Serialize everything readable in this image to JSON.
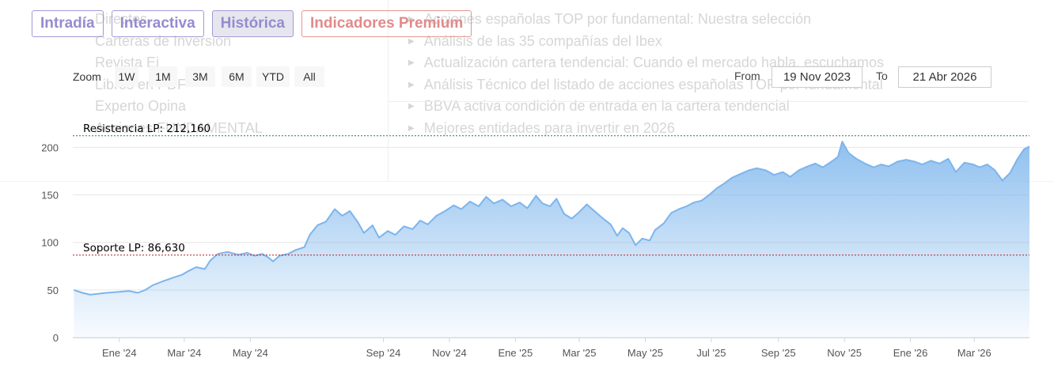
{
  "background_menu": {
    "left_items": [
      "Directos",
      "Carteras de Inversión",
      "Revista Ei",
      "Libros en PDF",
      "Experto Opina",
      "Acciones FUNDAMENTAL"
    ],
    "right_items": [
      "Acciones españolas TOP por fundamental: Nuestra selección",
      "Análisis de las 35 compañías del Ibex",
      "Actualización cartera tendencial: Cuando el mercado habla, escuchamos",
      "Análisis Técnico del listado de acciones españolas TOP por fundamental",
      "BBVA activa condición de entrada en la cartera tendencial",
      "Mejores entidades para invertir en 2026"
    ]
  },
  "tabs": [
    {
      "label": "Intradía",
      "active": false
    },
    {
      "label": "Interactiva",
      "active": false
    },
    {
      "label": "Histórica",
      "active": true
    },
    {
      "label": "Indicadores Premium",
      "active": false
    }
  ],
  "range_selector": {
    "zoom_label": "Zoom",
    "buttons": [
      "1W",
      "1M",
      "3M",
      "6M",
      "YTD",
      "All"
    ],
    "from_label": "From",
    "from_value": "19 Nov 2023",
    "to_label": "To",
    "to_value": "21 Abr 2026"
  },
  "colors": {
    "tab_border": "#a39ad6",
    "tab_text": "#958bd0",
    "premium": "#e28a8a",
    "series_line": "#7cb5ec",
    "resistance": "#2e7d32",
    "support": "#b71c1c"
  },
  "chart_data": {
    "type": "area",
    "ylim": [
      0,
      212
    ],
    "y_ticks": [
      0,
      50,
      100,
      150,
      200
    ],
    "x_range": [
      "2023-11-19",
      "2026-04-21"
    ],
    "x_ticks": [
      {
        "date": "2024-01-01",
        "label": "Ene '24"
      },
      {
        "date": "2024-03-01",
        "label": "Mar '24"
      },
      {
        "date": "2024-05-01",
        "label": "May '24"
      },
      {
        "date": "2024-09-01",
        "label": "Sep '24"
      },
      {
        "date": "2024-11-01",
        "label": "Nov '24"
      },
      {
        "date": "2025-01-01",
        "label": "Ene '25"
      },
      {
        "date": "2025-03-01",
        "label": "Mar '25"
      },
      {
        "date": "2025-05-01",
        "label": "May '25"
      },
      {
        "date": "2025-07-01",
        "label": "Jul '25"
      },
      {
        "date": "2025-09-01",
        "label": "Sep '25"
      },
      {
        "date": "2025-11-01",
        "label": "Nov '25"
      },
      {
        "date": "2026-01-01",
        "label": "Ene '26"
      },
      {
        "date": "2026-03-01",
        "label": "Mar '26"
      }
    ],
    "levels": [
      {
        "label": "Resistencia LP: 212,160",
        "value": 212.16,
        "color": "#2e7d32"
      },
      {
        "label": "Soporte LP: 86,630",
        "value": 86.63,
        "color": "#b71c1c"
      }
    ],
    "series": [
      {
        "points": [
          [
            "2023-11-20",
            50
          ],
          [
            "2023-11-28",
            47
          ],
          [
            "2023-12-05",
            45
          ],
          [
            "2023-12-12",
            46
          ],
          [
            "2023-12-20",
            47
          ],
          [
            "2024-01-01",
            48
          ],
          [
            "2024-01-10",
            49
          ],
          [
            "2024-01-18",
            47
          ],
          [
            "2024-01-25",
            50
          ],
          [
            "2024-02-01",
            55
          ],
          [
            "2024-02-10",
            59
          ],
          [
            "2024-02-20",
            63
          ],
          [
            "2024-02-28",
            66
          ],
          [
            "2024-03-05",
            70
          ],
          [
            "2024-03-12",
            74
          ],
          [
            "2024-03-20",
            72
          ],
          [
            "2024-03-25",
            81
          ],
          [
            "2024-04-01",
            88
          ],
          [
            "2024-04-10",
            90
          ],
          [
            "2024-04-20",
            87
          ],
          [
            "2024-04-28",
            89
          ],
          [
            "2024-05-05",
            86
          ],
          [
            "2024-05-12",
            88
          ],
          [
            "2024-05-18",
            84
          ],
          [
            "2024-05-22",
            80
          ],
          [
            "2024-05-28",
            86
          ],
          [
            "2024-06-05",
            88
          ],
          [
            "2024-06-12",
            92
          ],
          [
            "2024-06-20",
            95
          ],
          [
            "2024-06-25",
            108
          ],
          [
            "2024-07-02",
            118
          ],
          [
            "2024-07-10",
            122
          ],
          [
            "2024-07-18",
            135
          ],
          [
            "2024-07-25",
            128
          ],
          [
            "2024-08-01",
            133
          ],
          [
            "2024-08-08",
            122
          ],
          [
            "2024-08-14",
            110
          ],
          [
            "2024-08-22",
            118
          ],
          [
            "2024-08-28",
            105
          ],
          [
            "2024-09-05",
            112
          ],
          [
            "2024-09-12",
            108
          ],
          [
            "2024-09-20",
            117
          ],
          [
            "2024-09-28",
            114
          ],
          [
            "2024-10-05",
            123
          ],
          [
            "2024-10-12",
            119
          ],
          [
            "2024-10-20",
            128
          ],
          [
            "2024-10-28",
            133
          ],
          [
            "2024-11-05",
            139
          ],
          [
            "2024-11-12",
            135
          ],
          [
            "2024-11-20",
            143
          ],
          [
            "2024-11-28",
            138
          ],
          [
            "2024-12-05",
            148
          ],
          [
            "2024-12-12",
            141
          ],
          [
            "2024-12-20",
            145
          ],
          [
            "2024-12-28",
            138
          ],
          [
            "2025-01-05",
            142
          ],
          [
            "2025-01-12",
            136
          ],
          [
            "2025-01-20",
            149
          ],
          [
            "2025-01-26",
            141
          ],
          [
            "2025-02-02",
            138
          ],
          [
            "2025-02-08",
            146
          ],
          [
            "2025-02-15",
            130
          ],
          [
            "2025-02-22",
            125
          ],
          [
            "2025-03-01",
            132
          ],
          [
            "2025-03-08",
            140
          ],
          [
            "2025-03-15",
            133
          ],
          [
            "2025-03-22",
            126
          ],
          [
            "2025-03-30",
            119
          ],
          [
            "2025-04-05",
            107
          ],
          [
            "2025-04-10",
            115
          ],
          [
            "2025-04-16",
            110
          ],
          [
            "2025-04-22",
            97
          ],
          [
            "2025-04-28",
            104
          ],
          [
            "2025-05-05",
            102
          ],
          [
            "2025-05-10",
            113
          ],
          [
            "2025-05-18",
            120
          ],
          [
            "2025-05-25",
            131
          ],
          [
            "2025-06-01",
            135
          ],
          [
            "2025-06-08",
            138
          ],
          [
            "2025-06-15",
            142
          ],
          [
            "2025-06-22",
            144
          ],
          [
            "2025-06-29",
            150
          ],
          [
            "2025-07-06",
            157
          ],
          [
            "2025-07-13",
            162
          ],
          [
            "2025-07-20",
            168
          ],
          [
            "2025-07-28",
            172
          ],
          [
            "2025-08-05",
            176
          ],
          [
            "2025-08-12",
            178
          ],
          [
            "2025-08-20",
            176
          ],
          [
            "2025-08-28",
            171
          ],
          [
            "2025-09-05",
            174
          ],
          [
            "2025-09-12",
            169
          ],
          [
            "2025-09-20",
            176
          ],
          [
            "2025-09-28",
            180
          ],
          [
            "2025-10-05",
            183
          ],
          [
            "2025-10-12",
            179
          ],
          [
            "2025-10-20",
            185
          ],
          [
            "2025-10-26",
            190
          ],
          [
            "2025-10-30",
            206
          ],
          [
            "2025-11-05",
            194
          ],
          [
            "2025-11-12",
            188
          ],
          [
            "2025-11-20",
            183
          ],
          [
            "2025-11-28",
            179
          ],
          [
            "2025-12-05",
            182
          ],
          [
            "2025-12-12",
            180
          ],
          [
            "2025-12-20",
            185
          ],
          [
            "2025-12-28",
            187
          ],
          [
            "2026-01-05",
            185
          ],
          [
            "2026-01-12",
            182
          ],
          [
            "2026-01-20",
            186
          ],
          [
            "2026-01-28",
            183
          ],
          [
            "2026-02-05",
            188
          ],
          [
            "2026-02-12",
            174
          ],
          [
            "2026-02-20",
            184
          ],
          [
            "2026-02-28",
            182
          ],
          [
            "2026-03-06",
            179
          ],
          [
            "2026-03-13",
            182
          ],
          [
            "2026-03-20",
            176
          ],
          [
            "2026-03-27",
            165
          ],
          [
            "2026-04-03",
            173
          ],
          [
            "2026-04-10",
            188
          ],
          [
            "2026-04-16",
            198
          ],
          [
            "2026-04-21",
            201
          ]
        ]
      }
    ]
  }
}
